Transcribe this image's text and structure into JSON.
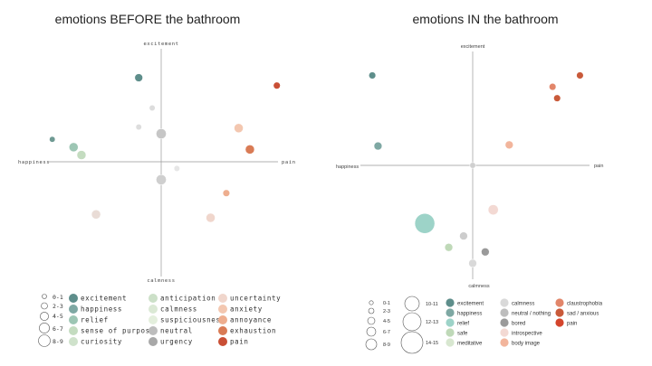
{
  "chart_data": [
    {
      "type": "scatter",
      "title": "emotions BEFORE the bathroom",
      "axis_labels": {
        "top": "excitement",
        "bottom": "calmness",
        "left": "happiness",
        "right": "pain"
      },
      "xlim": [
        -10,
        10
      ],
      "ylim": [
        -10,
        10
      ],
      "grid": false,
      "legend": "bottom",
      "size_legend": [
        "0-1",
        "2-3",
        "4-5",
        "6-7",
        "8-9"
      ],
      "series": [
        {
          "name": "excitement",
          "color": "#5e8e8b"
        },
        {
          "name": "happiness",
          "color": "#7ea8a3"
        },
        {
          "name": "relief",
          "color": "#9dc6b4"
        },
        {
          "name": "sense of purpose",
          "color": "#c4dcc0"
        },
        {
          "name": "curiosity",
          "color": "#cfe2cb"
        },
        {
          "name": "anticipation",
          "color": "#cce0c8"
        },
        {
          "name": "calmness",
          "color": "#dbe9d5"
        },
        {
          "name": "suspiciousness",
          "color": "#e4efdd"
        },
        {
          "name": "neutral",
          "color": "#bdbdbd"
        },
        {
          "name": "urgency",
          "color": "#a8a8a8"
        },
        {
          "name": "uncertainty",
          "color": "#f0d6cc"
        },
        {
          "name": "anxiety",
          "color": "#f3c7b0"
        },
        {
          "name": "annoyance",
          "color": "#eeae8f"
        },
        {
          "name": "exhaustion",
          "color": "#d97b55"
        },
        {
          "name": "pain",
          "color": "#c94f35"
        }
      ],
      "points": [
        {
          "x": -2.0,
          "y": 7.5,
          "size": 4,
          "color": "#5e8e8b"
        },
        {
          "x": 10.3,
          "y": 6.8,
          "size": 3,
          "color": "#c94f35"
        },
        {
          "x": -0.8,
          "y": 4.8,
          "size": 2,
          "color": "#dcdcdc"
        },
        {
          "x": -2.0,
          "y": 3.1,
          "size": 2,
          "color": "#dddddd"
        },
        {
          "x": 0.0,
          "y": 2.5,
          "size": 6,
          "color": "#c6c6c6"
        },
        {
          "x": 6.9,
          "y": 3.0,
          "size": 5,
          "color": "#f3c7b0"
        },
        {
          "x": -9.7,
          "y": 2.0,
          "size": 2,
          "color": "#6f9a93"
        },
        {
          "x": -7.8,
          "y": 1.3,
          "size": 5,
          "color": "#9dc6b4"
        },
        {
          "x": -7.1,
          "y": 0.6,
          "size": 5,
          "color": "#c4dcc0"
        },
        {
          "x": 7.9,
          "y": 1.1,
          "size": 5,
          "color": "#d97b55"
        },
        {
          "x": 1.4,
          "y": -0.6,
          "size": 2,
          "color": "#e6e6e6"
        },
        {
          "x": 0.0,
          "y": -1.6,
          "size": 6,
          "color": "#cfcfcf"
        },
        {
          "x": 5.8,
          "y": -2.8,
          "size": 3,
          "color": "#eeae8f"
        },
        {
          "x": -5.8,
          "y": -4.7,
          "size": 5,
          "color": "#e9dcd6"
        },
        {
          "x": 4.4,
          "y": -5.0,
          "size": 5,
          "color": "#f0d6cc"
        }
      ]
    },
    {
      "type": "scatter",
      "title": "emotions IN the bathroom",
      "axis_labels": {
        "top": "excitement",
        "bottom": "calmness",
        "left": "happiness",
        "right": "pain"
      },
      "xlim": [
        -10,
        10
      ],
      "ylim": [
        -10,
        10
      ],
      "grid": false,
      "legend": "bottom",
      "size_legend": [
        "0-1",
        "2-3",
        "4-5",
        "6-7",
        "8-9",
        "10-11",
        "12-13",
        "14-15"
      ],
      "series": [
        {
          "name": "excitement",
          "color": "#5e8e8b"
        },
        {
          "name": "happiness",
          "color": "#7ea8a3"
        },
        {
          "name": "relief",
          "color": "#9dd3c8"
        },
        {
          "name": "safe",
          "color": "#bfd9b8"
        },
        {
          "name": "meditative",
          "color": "#d8e7d0"
        },
        {
          "name": "calmness",
          "color": "#d9d9d9"
        },
        {
          "name": "neutral / nothing",
          "color": "#bdbdbd"
        },
        {
          "name": "bored",
          "color": "#9a9a9a"
        },
        {
          "name": "introspective",
          "color": "#f3d9d3"
        },
        {
          "name": "body image",
          "color": "#f2b59c"
        },
        {
          "name": "claustrophobia",
          "color": "#e2866a"
        },
        {
          "name": "sad / anxious",
          "color": "#c95a3a"
        },
        {
          "name": "pain",
          "color": "#d4452c"
        }
      ],
      "points": [
        {
          "x": -8.8,
          "y": 7.9,
          "size": 3,
          "color": "#5e8e8b"
        },
        {
          "x": 9.4,
          "y": 7.9,
          "size": 3,
          "color": "#c95a3a"
        },
        {
          "x": 7.0,
          "y": 6.9,
          "size": 3,
          "color": "#e2866a"
        },
        {
          "x": 7.4,
          "y": 5.9,
          "size": 3,
          "color": "#c95a3a"
        },
        {
          "x": -8.3,
          "y": 1.7,
          "size": 4,
          "color": "#7ea8a3"
        },
        {
          "x": 3.2,
          "y": 1.8,
          "size": 4,
          "color": "#f2b59c"
        },
        {
          "x": 0.0,
          "y": 0.0,
          "size": 2,
          "color": "#cfcfcf"
        },
        {
          "x": 1.8,
          "y": -3.9,
          "size": 6,
          "color": "#f3d9d3"
        },
        {
          "x": -4.2,
          "y": -5.1,
          "size": 15,
          "color": "#9dd3c8"
        },
        {
          "x": -0.8,
          "y": -6.2,
          "size": 4,
          "color": "#cdcdcd"
        },
        {
          "x": -2.1,
          "y": -7.2,
          "size": 4,
          "color": "#bfd9b8"
        },
        {
          "x": 1.1,
          "y": -7.6,
          "size": 4,
          "color": "#9a9a9a"
        },
        {
          "x": 0.0,
          "y": -8.6,
          "size": 4,
          "color": "#d9d9d9"
        }
      ]
    }
  ]
}
